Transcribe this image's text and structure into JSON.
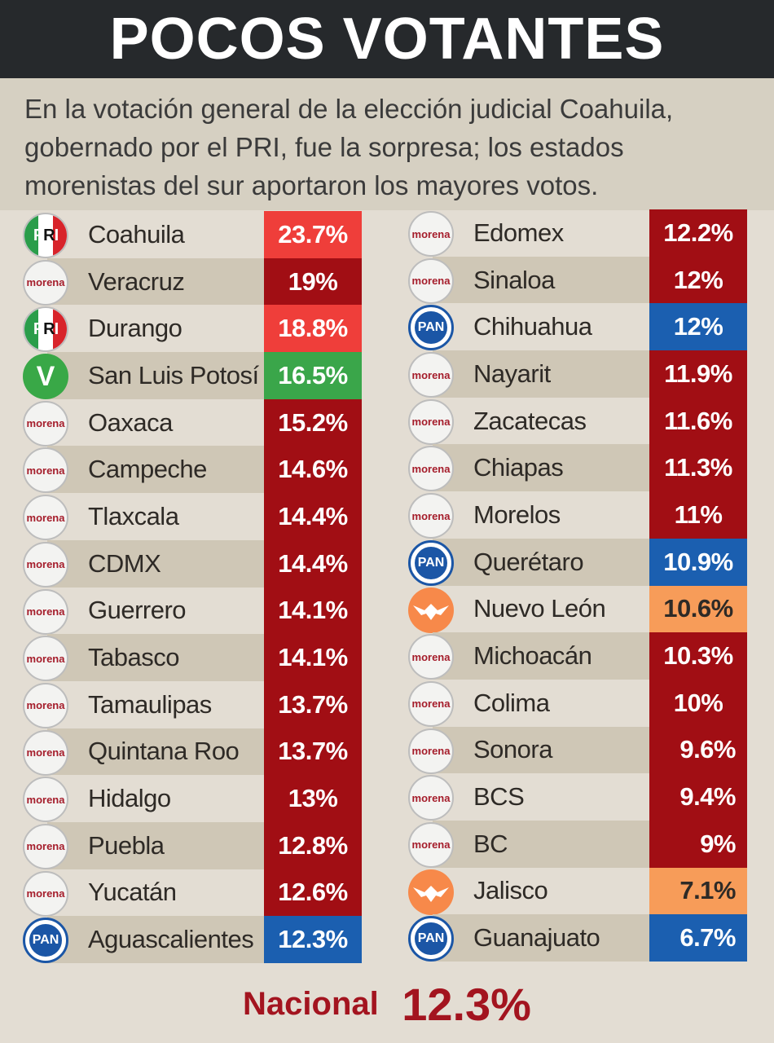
{
  "header": {
    "title": "POCOS VOTANTES"
  },
  "subtitle": "En la votación general de la elección judicial Coahuila, gobernado por el PRI, fue la sorpresa; los estados morenistas del sur aportaron los mayores votos.",
  "colors": {
    "morena": "#a10e14",
    "pri": "#ef3e3a",
    "pan": "#1b5fb0",
    "pvem": "#3aa64a",
    "mc": "#f79c59"
  },
  "party_logo_text": {
    "morena": "morena",
    "pan": "PAN",
    "pri_p": "P",
    "pri_r": "R",
    "pri_i": "I",
    "pvem": "V"
  },
  "chart_data": {
    "type": "table",
    "left": [
      {
        "state": "Coahuila",
        "party": "pri",
        "value_label": "23.7%",
        "value": 23.7
      },
      {
        "state": "Veracruz",
        "party": "morena",
        "value_label": "19%",
        "value": 19
      },
      {
        "state": "Durango",
        "party": "pri",
        "value_label": "18.8%",
        "value": 18.8
      },
      {
        "state": "San Luis Potosí",
        "party": "pvem",
        "value_label": "16.5%",
        "value": 16.5
      },
      {
        "state": "Oaxaca",
        "party": "morena",
        "value_label": "15.2%",
        "value": 15.2
      },
      {
        "state": "Campeche",
        "party": "morena",
        "value_label": "14.6%",
        "value": 14.6
      },
      {
        "state": "Tlaxcala",
        "party": "morena",
        "value_label": "14.4%",
        "value": 14.4
      },
      {
        "state": "CDMX",
        "party": "morena",
        "value_label": "14.4%",
        "value": 14.4
      },
      {
        "state": "Guerrero",
        "party": "morena",
        "value_label": "14.1%",
        "value": 14.1
      },
      {
        "state": "Tabasco",
        "party": "morena",
        "value_label": "14.1%",
        "value": 14.1
      },
      {
        "state": "Tamaulipas",
        "party": "morena",
        "value_label": "13.7%",
        "value": 13.7
      },
      {
        "state": "Quintana Roo",
        "party": "morena",
        "value_label": "13.7%",
        "value": 13.7
      },
      {
        "state": "Hidalgo",
        "party": "morena",
        "value_label": "13%",
        "value": 13
      },
      {
        "state": "Puebla",
        "party": "morena",
        "value_label": "12.8%",
        "value": 12.8
      },
      {
        "state": "Yucatán",
        "party": "morena",
        "value_label": "12.6%",
        "value": 12.6
      },
      {
        "state": "Aguascalientes",
        "party": "pan",
        "value_label": "12.3%",
        "value": 12.3
      }
    ],
    "right": [
      {
        "state": "Edomex",
        "party": "morena",
        "value_label": "12.2%",
        "value": 12.2
      },
      {
        "state": "Sinaloa",
        "party": "morena",
        "value_label": "12%",
        "value": 12
      },
      {
        "state": "Chihuahua",
        "party": "pan",
        "value_label": "12%",
        "value": 12
      },
      {
        "state": "Nayarit",
        "party": "morena",
        "value_label": "11.9%",
        "value": 11.9
      },
      {
        "state": "Zacatecas",
        "party": "morena",
        "value_label": "11.6%",
        "value": 11.6
      },
      {
        "state": "Chiapas",
        "party": "morena",
        "value_label": "11.3%",
        "value": 11.3
      },
      {
        "state": "Morelos",
        "party": "morena",
        "value_label": "11%",
        "value": 11
      },
      {
        "state": "Querétaro",
        "party": "pan",
        "value_label": "10.9%",
        "value": 10.9
      },
      {
        "state": "Nuevo León",
        "party": "mc",
        "value_label": "10.6%",
        "value": 10.6
      },
      {
        "state": "Michoacán",
        "party": "morena",
        "value_label": "10.3%",
        "value": 10.3
      },
      {
        "state": "Colima",
        "party": "morena",
        "value_label": "10%",
        "value": 10
      },
      {
        "state": "Sonora",
        "party": "morena",
        "value_label": "9.6%",
        "value": 9.6
      },
      {
        "state": "BCS",
        "party": "morena",
        "value_label": "9.4%",
        "value": 9.4
      },
      {
        "state": "BC",
        "party": "morena",
        "value_label": "9%",
        "value": 9
      },
      {
        "state": "Jalisco",
        "party": "mc",
        "value_label": "7.1%",
        "value": 7.1
      },
      {
        "state": "Guanajuato",
        "party": "pan",
        "value_label": "6.7%",
        "value": 6.7
      }
    ],
    "national": {
      "label": "Nacional",
      "value_label": "12.3%",
      "value": 12.3
    }
  }
}
